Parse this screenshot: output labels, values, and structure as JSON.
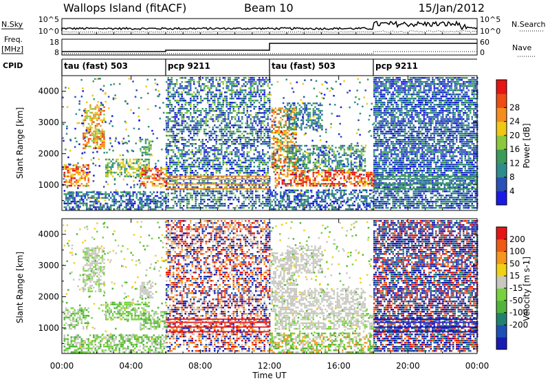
{
  "header": {
    "station": "Wallops Island (fitACF)",
    "beam": "Beam 10",
    "date": "15/Jan/2012"
  },
  "nsky": {
    "label": "N.Sky",
    "tick_top": "10^5",
    "tick_bottom": "10^0",
    "right_label": "N.Search",
    "right_tick_top": "10^5",
    "right_tick_bottom": "10^0"
  },
  "freq": {
    "label_line1": "Freq.",
    "label_line2": "[MHz]",
    "tick_top": "18",
    "tick_bottom": "8",
    "right_label": "Nave",
    "right_tick_top": "60",
    "right_tick_bottom": "0"
  },
  "cpid": {
    "label": "CPID",
    "segments": [
      {
        "label": "tau (fast) 503",
        "start_hour": 0,
        "end_hour": 6
      },
      {
        "label": "pcp 9211",
        "start_hour": 6,
        "end_hour": 12
      },
      {
        "label": "tau (fast) 503",
        "start_hour": 12,
        "end_hour": 18
      },
      {
        "label": "pcp 9211",
        "start_hour": 18,
        "end_hour": 24
      }
    ]
  },
  "xaxis": {
    "label": "Time UT",
    "ticks": [
      {
        "hour": 0,
        "label": "00:00"
      },
      {
        "hour": 4,
        "label": "04:00"
      },
      {
        "hour": 8,
        "label": "08:00"
      },
      {
        "hour": 12,
        "label": "12:00"
      },
      {
        "hour": 16,
        "label": "16:00"
      },
      {
        "hour": 20,
        "label": "20:00"
      },
      {
        "hour": 24,
        "label": "00:00"
      }
    ]
  },
  "chart_data": [
    {
      "type": "heatmap",
      "panel": "power",
      "ylabel": "Slant Range [km]",
      "ylim": [
        180,
        4500
      ],
      "xlim_hours": [
        0,
        24
      ],
      "yticks": [
        1000,
        2000,
        3000,
        4000
      ],
      "colorbar": {
        "title": "Power [dB]",
        "ticks": [
          "4",
          "8",
          "12",
          "16",
          "20",
          "24",
          "28"
        ],
        "colors": [
          "#1a1ae6",
          "#2a4fb8",
          "#2e8c8c",
          "#3c9a5a",
          "#8cc83c",
          "#f0c814",
          "#f58c1e",
          "#ef4b14",
          "#e61414"
        ]
      }
    },
    {
      "type": "heatmap",
      "panel": "velocity",
      "ylabel": "Slant Range [km]",
      "ylim": [
        180,
        4500
      ],
      "xlim_hours": [
        0,
        24
      ],
      "yticks": [
        1000,
        2000,
        3000,
        4000
      ],
      "colorbar": {
        "title": "Velocity [m s-1]",
        "ticks": [
          "200",
          "100",
          "50",
          "15",
          "-15",
          "-50",
          "-100",
          "-200"
        ],
        "colors": [
          "#1a1ab4",
          "#1e50b4",
          "#20826e",
          "#50b43c",
          "#78d23c",
          "#c8c8c0",
          "#f0d214",
          "#f5961e",
          "#f05a14",
          "#e61414"
        ]
      }
    }
  ]
}
